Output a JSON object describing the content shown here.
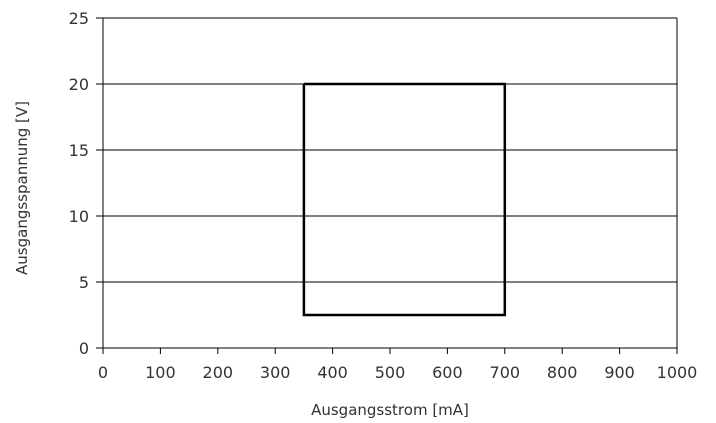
{
  "chart_data": {
    "type": "line",
    "title": "",
    "xlabel": "Ausgangsstrom [mA]",
    "ylabel": "Ausgangsspannung [V]",
    "xlim": [
      0,
      1000
    ],
    "ylim": [
      0,
      25
    ],
    "xticks": [
      0,
      100,
      200,
      300,
      400,
      500,
      600,
      700,
      800,
      900,
      1000
    ],
    "yticks": [
      0,
      5,
      10,
      15,
      20,
      25
    ],
    "grid": "horizontal",
    "series": [
      {
        "x": [
          350,
          700,
          700,
          350,
          350
        ],
        "y": [
          20,
          20,
          2.5,
          2.5,
          20
        ],
        "color": "#000000"
      }
    ]
  }
}
